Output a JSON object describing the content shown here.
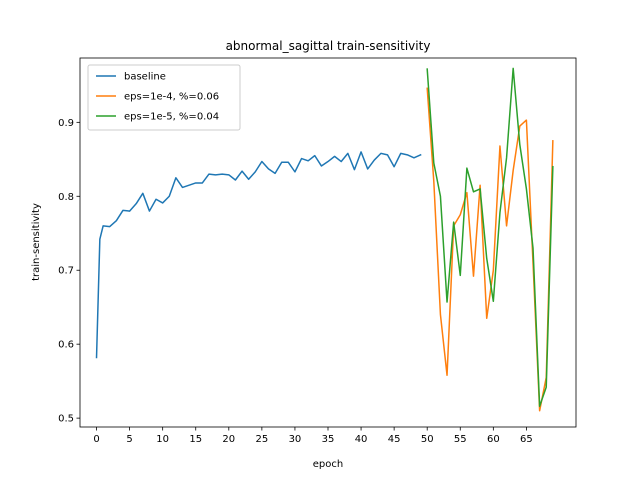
{
  "chart_data": {
    "type": "line",
    "title": "abnormal_sagittal train-sensitivity",
    "xlabel": "epoch",
    "ylabel": "train-sensitivity",
    "xlim": [
      -2.5,
      72.5
    ],
    "ylim": [
      0.488,
      0.987
    ],
    "xticks": [
      0,
      5,
      10,
      15,
      20,
      25,
      30,
      35,
      40,
      45,
      50,
      55,
      60,
      65
    ],
    "yticks": [
      0.5,
      0.6,
      0.7,
      0.8,
      0.9
    ],
    "grid": false,
    "legend_position": "top-left",
    "series": [
      {
        "name": "baseline",
        "color": "#1f77b4",
        "x": [
          0,
          0.5,
          1,
          2,
          3,
          4,
          5,
          6,
          7,
          8,
          9,
          10,
          11,
          12,
          13,
          14,
          15,
          16,
          17,
          18,
          19,
          20,
          21,
          22,
          23,
          24,
          25,
          26,
          27,
          28,
          29,
          30,
          31,
          32,
          33,
          34,
          35,
          36,
          37,
          38,
          39,
          40,
          41,
          42,
          43,
          44,
          45,
          46,
          47,
          48,
          49
        ],
        "values": [
          0.582,
          0.742,
          0.76,
          0.759,
          0.767,
          0.781,
          0.78,
          0.79,
          0.804,
          0.78,
          0.796,
          0.791,
          0.8,
          0.825,
          0.812,
          0.815,
          0.818,
          0.818,
          0.83,
          0.829,
          0.83,
          0.829,
          0.822,
          0.834,
          0.823,
          0.833,
          0.847,
          0.837,
          0.831,
          0.846,
          0.846,
          0.833,
          0.851,
          0.848,
          0.855,
          0.841,
          0.847,
          0.854,
          0.847,
          0.858,
          0.836,
          0.86,
          0.837,
          0.849,
          0.858,
          0.856,
          0.84,
          0.858,
          0.856,
          0.852,
          0.856
        ]
      },
      {
        "name": "eps=1e-4, %=0.06",
        "color": "#ff7f0e",
        "x": [
          50,
          51,
          52,
          53,
          54,
          55,
          56,
          57,
          58,
          59,
          60,
          61,
          62,
          63,
          64,
          65,
          66,
          67,
          68,
          69
        ],
        "values": [
          0.946,
          0.82,
          0.64,
          0.558,
          0.76,
          0.775,
          0.805,
          0.692,
          0.815,
          0.635,
          0.7,
          0.868,
          0.76,
          0.835,
          0.895,
          0.903,
          0.71,
          0.51,
          0.555,
          0.875
        ]
      },
      {
        "name": "eps=1e-5, %=0.04",
        "color": "#2ca02c",
        "x": [
          50,
          51,
          52,
          53,
          54,
          55,
          56,
          57,
          58,
          59,
          60,
          61,
          62,
          63,
          64,
          65,
          66,
          67,
          68,
          69
        ],
        "values": [
          0.972,
          0.845,
          0.8,
          0.657,
          0.765,
          0.693,
          0.838,
          0.806,
          0.81,
          0.716,
          0.658,
          0.778,
          0.852,
          0.973,
          0.87,
          0.81,
          0.73,
          0.516,
          0.542,
          0.84
        ]
      }
    ]
  }
}
